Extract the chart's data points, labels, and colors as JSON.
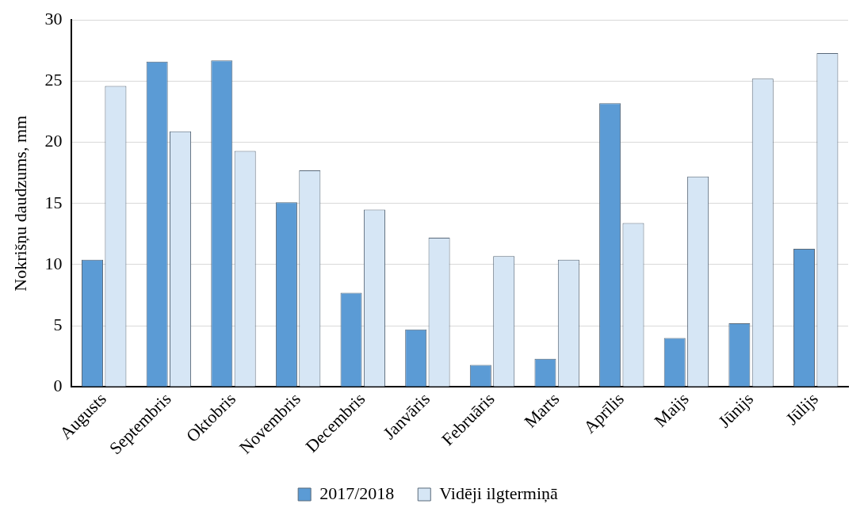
{
  "chart_data": {
    "type": "bar",
    "ylabel": "Nokrišņu daudzums, mm",
    "categories": [
      "Augusts",
      "Septembris",
      "Oktobris",
      "Novembris",
      "Decembris",
      "Janvāris",
      "Februāris",
      "Marts",
      "Aprīlis",
      "Maijs",
      "Jūnijs",
      "Jūlijs"
    ],
    "series": [
      {
        "name": "2017/2018",
        "color": "#5b9bd5",
        "values": [
          10.4,
          26.6,
          26.7,
          15.1,
          7.7,
          4.7,
          1.8,
          2.3,
          23.2,
          4.0,
          5.2,
          11.3
        ]
      },
      {
        "name": "Vidēji ilgtermiņā",
        "color": "#d6e6f5",
        "values": [
          24.6,
          20.9,
          19.3,
          17.7,
          14.5,
          12.2,
          10.7,
          10.4,
          13.4,
          17.2,
          25.2,
          27.3
        ]
      }
    ],
    "ylim": [
      0,
      30
    ],
    "yticks": [
      0,
      5,
      10,
      15,
      20,
      25,
      30
    ],
    "grid": "y",
    "legend": "bottom"
  }
}
